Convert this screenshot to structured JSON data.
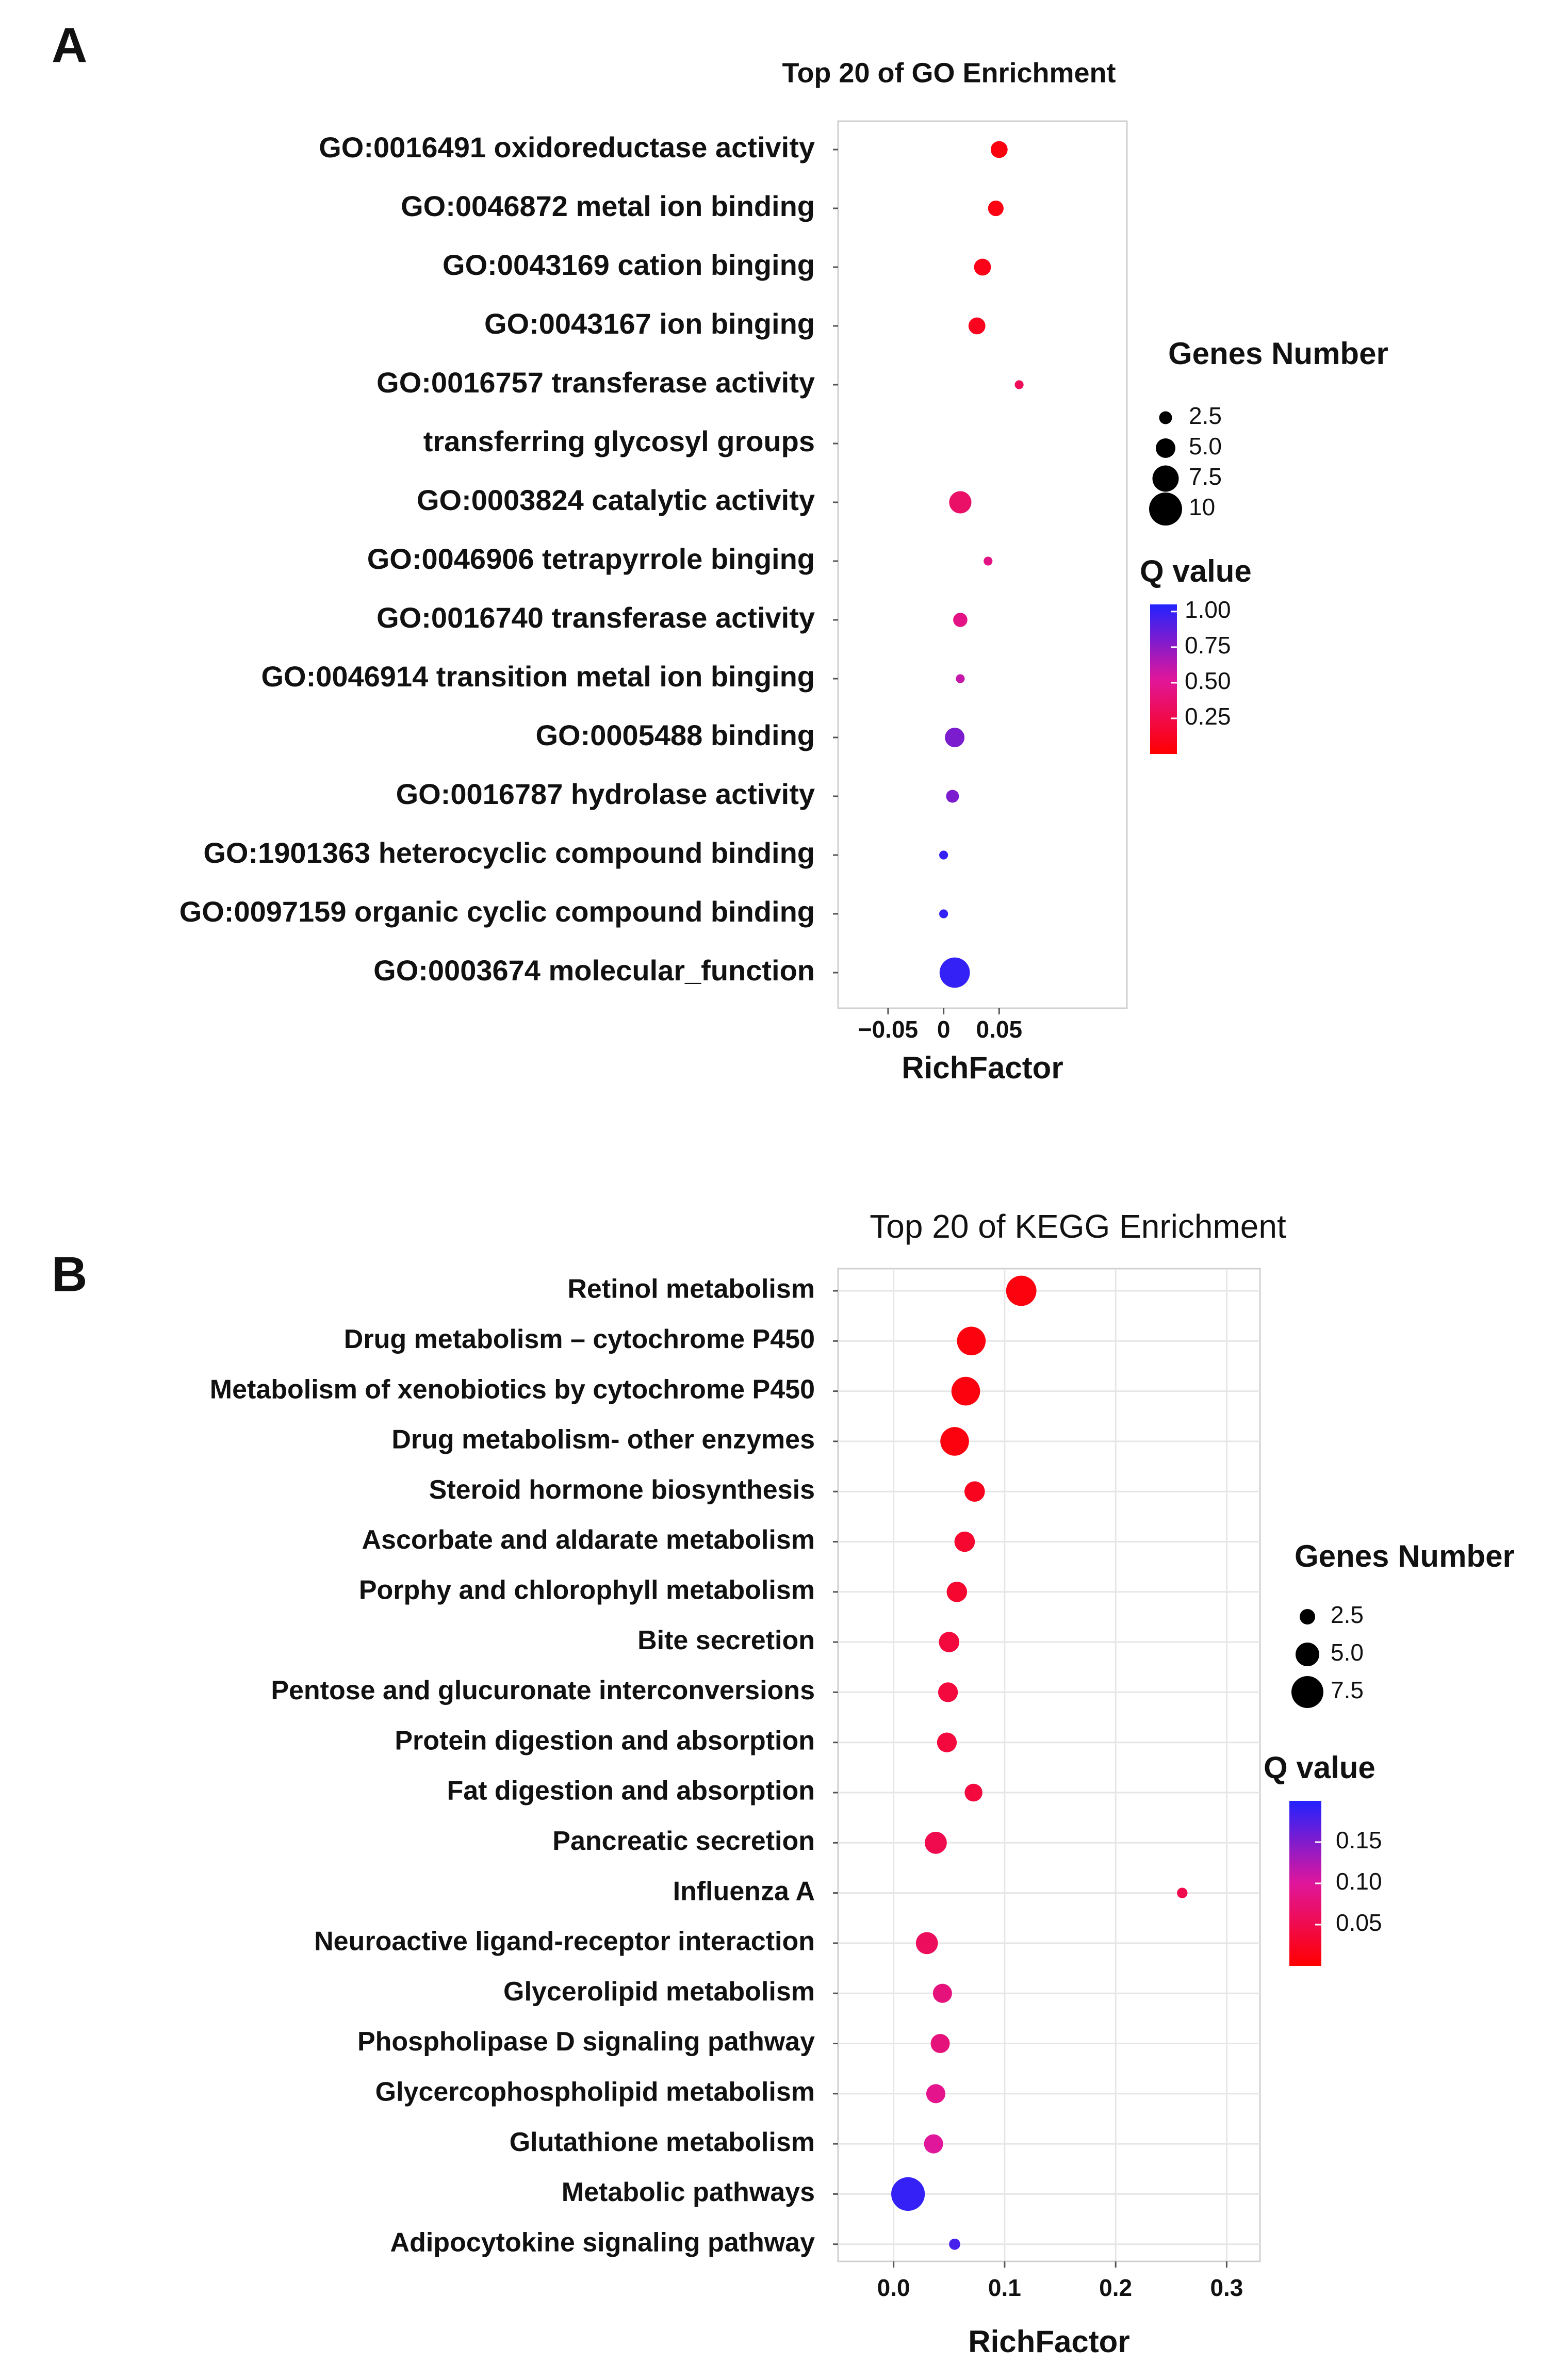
{
  "colors": {
    "q_low": "#ff0000",
    "q_mid": "#e0169b",
    "q_high": "#2222ff",
    "grid": "#e6e6e6",
    "panel_border": "#d0d0d0",
    "text": "#111111"
  },
  "chart_data": [
    {
      "panel_label": "A",
      "type": "scatter",
      "title": "Top 20 of GO Enrichment",
      "xlabel": "RichFactor",
      "ylabel": "",
      "xlim": [
        -0.095,
        0.165
      ],
      "xticks": [
        -0.05,
        0,
        0.05
      ],
      "xtick_labels": [
        "−0.05",
        "0",
        "0.05"
      ],
      "grid": false,
      "categories": [
        "GO:0016491 oxidoreductase activity",
        "GO:0046872 metal ion binding",
        "GO:0043169 cation binging",
        "GO:0043167 ion binging",
        "GO:0016757 transferase activity",
        "transferring glycosyl groups",
        "GO:0003824 catalytic activity",
        "GO:0046906 tetrapyrrole binging",
        "GO:0016740 transferase activity",
        "GO:0046914 transition metal ion binging",
        "GO:0005488 binding",
        "GO:0016787 hydrolase activity",
        "GO:1901363 heterocyclic compound binding",
        "GO:0097159 organic cyclic compound binding",
        "GO:0003674 molecular_function"
      ],
      "points": [
        {
          "row": 0,
          "x": 0.05,
          "genes": 4.0,
          "q": 0.05
        },
        {
          "row": 1,
          "x": 0.047,
          "genes": 3.5,
          "q": 0.06
        },
        {
          "row": 2,
          "x": 0.035,
          "genes": 4.0,
          "q": 0.08
        },
        {
          "row": 3,
          "x": 0.03,
          "genes": 4.0,
          "q": 0.1
        },
        {
          "row": 4,
          "x": 0.068,
          "genes": 1.0,
          "q": 0.3
        },
        {
          "row": 6,
          "x": 0.015,
          "genes": 6.0,
          "q": 0.35
        },
        {
          "row": 7,
          "x": 0.04,
          "genes": 1.0,
          "q": 0.45
        },
        {
          "row": 8,
          "x": 0.015,
          "genes": 3.0,
          "q": 0.45
        },
        {
          "row": 9,
          "x": 0.015,
          "genes": 1.0,
          "q": 0.6
        },
        {
          "row": 10,
          "x": 0.01,
          "genes": 5.0,
          "q": 0.8
        },
        {
          "row": 11,
          "x": 0.008,
          "genes": 2.5,
          "q": 0.8
        },
        {
          "row": 12,
          "x": 0.0,
          "genes": 1.0,
          "q": 1.0
        },
        {
          "row": 13,
          "x": 0.0,
          "genes": 1.0,
          "q": 1.0
        },
        {
          "row": 14,
          "x": 0.01,
          "genes": 9.0,
          "q": 1.0
        }
      ],
      "size_legend": {
        "title": "Genes Number",
        "values": [
          2.5,
          5.0,
          7.5,
          10
        ],
        "labels": [
          "2.5",
          "5.0",
          "7.5",
          "10"
        ]
      },
      "color_legend": {
        "title": "Q value",
        "range": [
          0.0,
          1.05
        ],
        "ticks": [
          1.0,
          0.75,
          0.5,
          0.25
        ],
        "tick_labels": [
          "1.00",
          "0.75",
          "0.50",
          "0.25"
        ]
      }
    },
    {
      "panel_label": "B",
      "type": "scatter",
      "title": "Top 20 of KEGG Enrichment",
      "xlabel": "RichFactor",
      "ylabel": "",
      "xlim": [
        -0.05,
        0.33
      ],
      "xticks": [
        0.0,
        0.1,
        0.2,
        0.3
      ],
      "xtick_labels": [
        "0.0",
        "0.1",
        "0.2",
        "0.3"
      ],
      "grid": true,
      "categories": [
        "Retinol metabolism",
        "Drug metabolism – cytochrome P450",
        "Metabolism of xenobiotics by cytochrome  P450",
        "Drug metabolism- other enzymes",
        "Steroid hormone biosynthesis",
        "Ascorbate and aldarate metabolism",
        "Porphy and chlorophyll metabolism",
        "Bite secretion",
        "Pentose and glucuronate interconversions",
        "Protein digestion and absorption",
        "Fat digestion and absorption",
        "Pancreatic secretion",
        "Influenza A",
        "Neuroactive ligand-receptor interaction",
        "Glycerolipid metabolism",
        "Phospholipase D signaling pathway",
        "Glycercophospholipid metabolism",
        "Glutathione metabolism",
        "Metabolic pathways",
        "Adipocytokine signaling pathway"
      ],
      "points": [
        {
          "row": 0,
          "x": 0.115,
          "genes": 7.0,
          "q": 0.01
        },
        {
          "row": 1,
          "x": 0.07,
          "genes": 6.5,
          "q": 0.01
        },
        {
          "row": 2,
          "x": 0.065,
          "genes": 6.5,
          "q": 0.01
        },
        {
          "row": 3,
          "x": 0.055,
          "genes": 6.5,
          "q": 0.01
        },
        {
          "row": 4,
          "x": 0.073,
          "genes": 4.0,
          "q": 0.02
        },
        {
          "row": 5,
          "x": 0.064,
          "genes": 4.0,
          "q": 0.03
        },
        {
          "row": 6,
          "x": 0.057,
          "genes": 4.0,
          "q": 0.03
        },
        {
          "row": 7,
          "x": 0.05,
          "genes": 4.0,
          "q": 0.04
        },
        {
          "row": 8,
          "x": 0.049,
          "genes": 3.8,
          "q": 0.04
        },
        {
          "row": 9,
          "x": 0.048,
          "genes": 3.8,
          "q": 0.04
        },
        {
          "row": 10,
          "x": 0.072,
          "genes": 3.2,
          "q": 0.04
        },
        {
          "row": 11,
          "x": 0.038,
          "genes": 4.5,
          "q": 0.05
        },
        {
          "row": 12,
          "x": 0.26,
          "genes": 1.0,
          "q": 0.05
        },
        {
          "row": 13,
          "x": 0.03,
          "genes": 4.5,
          "q": 0.06
        },
        {
          "row": 14,
          "x": 0.044,
          "genes": 3.6,
          "q": 0.08
        },
        {
          "row": 15,
          "x": 0.042,
          "genes": 3.6,
          "q": 0.08
        },
        {
          "row": 16,
          "x": 0.038,
          "genes": 3.6,
          "q": 0.09
        },
        {
          "row": 17,
          "x": 0.036,
          "genes": 3.6,
          "q": 0.1
        },
        {
          "row": 18,
          "x": 0.013,
          "genes": 8.0,
          "q": 0.19
        },
        {
          "row": 19,
          "x": 0.055,
          "genes": 1.2,
          "q": 0.18
        }
      ],
      "size_legend": {
        "title": "Genes Number",
        "values": [
          2.5,
          5.0,
          7.5
        ],
        "labels": [
          "2.5",
          "5.0",
          "7.5"
        ]
      },
      "color_legend": {
        "title": "Q value",
        "range": [
          0.0,
          0.2
        ],
        "ticks": [
          0.15,
          0.1,
          0.05
        ],
        "tick_labels": [
          "0.15",
          "0.10",
          "0.05"
        ]
      }
    }
  ]
}
